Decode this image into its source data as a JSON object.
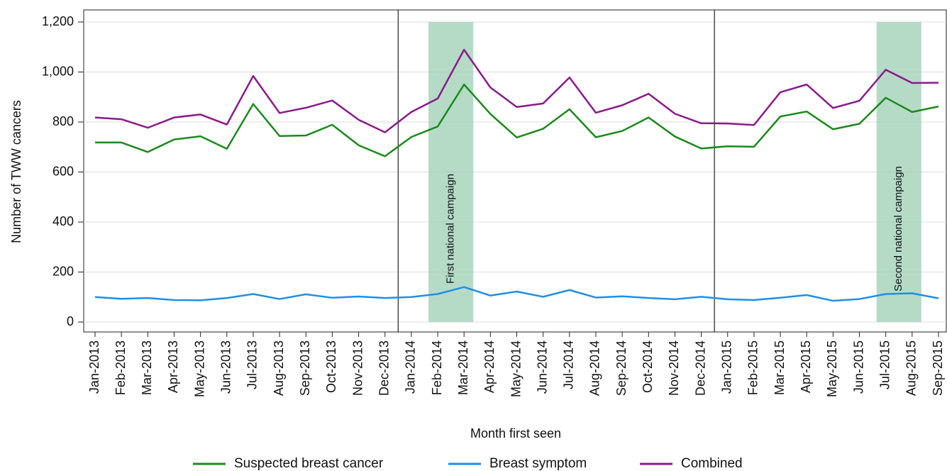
{
  "chart_data": {
    "type": "line",
    "x_label": "Month first seen",
    "y_label": "Number of TWW cancers",
    "categories": [
      "Jan-2013",
      "Feb-2013",
      "Mar-2013",
      "Apr-2013",
      "May-2013",
      "Jun-2013",
      "Jul-2013",
      "Aug-2013",
      "Sep-2013",
      "Oct-2013",
      "Nov-2013",
      "Dec-2013",
      "Jan-2014",
      "Feb-2014",
      "Mar-2014",
      "Apr-2014",
      "May-2014",
      "Jun-2014",
      "Jul-2014",
      "Aug-2014",
      "Sep-2014",
      "Oct-2014",
      "Nov-2014",
      "Dec-2014",
      "Jan-2015",
      "Feb-2015",
      "Mar-2015",
      "Apr-2015",
      "May-2015",
      "Jun-2015",
      "Jul-2015",
      "Aug-2015",
      "Sep-2015"
    ],
    "series": [
      {
        "name": "Suspected breast cancer",
        "color": "#1b8a1b",
        "values": [
          718,
          718,
          680,
          730,
          743,
          693,
          872,
          744,
          746,
          789,
          707,
          663,
          740,
          782,
          950,
          832,
          738,
          773,
          851,
          739,
          764,
          818,
          742,
          694,
          703,
          701,
          822,
          842,
          771,
          793,
          897,
          840,
          862
        ]
      },
      {
        "name": "Breast symptom",
        "color": "#1f8fe8",
        "values": [
          100,
          93,
          96,
          88,
          87,
          96,
          112,
          92,
          111,
          97,
          102,
          96,
          100,
          112,
          140,
          106,
          122,
          101,
          128,
          98,
          103,
          96,
          91,
          101,
          91,
          88,
          97,
          108,
          85,
          92,
          112,
          115,
          95
        ]
      },
      {
        "name": "Combined",
        "color": "#8b1a8b",
        "values": [
          818,
          811,
          777,
          818,
          830,
          790,
          984,
          836,
          857,
          886,
          809,
          759,
          840,
          894,
          1089,
          938,
          860,
          874,
          978,
          837,
          867,
          913,
          833,
          795,
          794,
          788,
          919,
          950,
          856,
          885,
          1009,
          956,
          957
        ]
      }
    ],
    "ylim": [
      0,
      1200
    ],
    "yticks": [
      0,
      200,
      400,
      600,
      800,
      {
        "value": 1000,
        "label": "1,000"
      },
      {
        "value": 1200,
        "label": "1,200"
      }
    ],
    "grid": true,
    "period_breaks": [
      "Jan-2014",
      "Jan-2015"
    ],
    "shaded_regions": [
      {
        "label": "First national campaign",
        "start": "Feb-2014",
        "end": "Mar-2014",
        "color": "#9ccfb4"
      },
      {
        "label": "Second national campaign",
        "start": "Jul-2015",
        "end": "Aug-2015",
        "color": "#9ccfb4"
      }
    ],
    "legend_position": "bottom"
  }
}
